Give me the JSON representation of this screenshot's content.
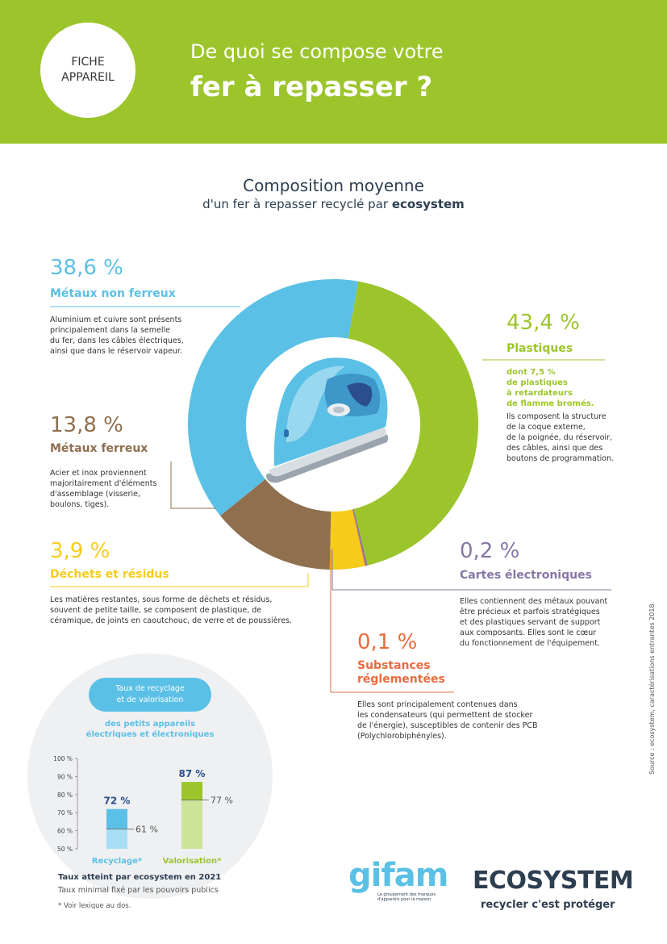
{
  "header": {
    "badge_line1": "FICHE",
    "badge_line2": "APPAREIL",
    "title_line1": "De quoi se compose votre",
    "title_line2": "fer à repasser ?"
  },
  "composition": {
    "title": "Composition moyenne",
    "subtitle_prefix": "d'un fer à repasser recyclé par ",
    "subtitle_brand": "ecosystem"
  },
  "chart_data": [
    {
      "type": "pie",
      "title": "Composition moyenne",
      "categories": [
        "Plastiques",
        "Cartes électroniques",
        "Substances réglementées",
        "Déchets et résidus",
        "Métaux ferreux",
        "Métaux non ferreux"
      ],
      "values": [
        43.4,
        0.2,
        0.1,
        3.9,
        13.8,
        38.6
      ],
      "colors": [
        "#9cc52c",
        "#8676a5",
        "#ea6b3f",
        "#f6cc1b",
        "#8f6f4e",
        "#5bc0e6"
      ]
    },
    {
      "type": "bar",
      "title": "Taux de recyclage et de valorisation",
      "categories": [
        "Recyclage*",
        "Valorisation*"
      ],
      "series": [
        {
          "name": "Taux atteint par ecosystem en 2021",
          "values": [
            72,
            87
          ]
        },
        {
          "name": "Taux minimal fixé par les pouvoirs publics",
          "values": [
            61,
            77
          ]
        }
      ],
      "ylim": [
        50,
        100
      ],
      "yticks": [
        "100 %",
        "90 %",
        "80 %",
        "70 %",
        "60 %",
        "50 %"
      ]
    }
  ],
  "segments": {
    "non_ferreux": {
      "pct": "38,6 %",
      "label": "Métaux non ferreux",
      "desc": [
        "Aluminium et cuivre sont présents",
        "principalement dans la semelle",
        "du fer, dans les câbles électriques,",
        "ainsi que dans le réservoir vapeur."
      ]
    },
    "plastiques": {
      "pct": "43,4 %",
      "label": "Plastiques",
      "bold": [
        "dont 7,5 %",
        "de plastiques",
        "à retardateurs",
        "de flamme bromés."
      ],
      "desc": [
        "Ils composent la structure",
        "de la coque externe,",
        "de la poignée, du réservoir,",
        "des câbles, ainsi que des",
        "boutons de programmation."
      ]
    },
    "ferreux": {
      "pct": "13,8 %",
      "label": "Métaux ferreux",
      "desc": [
        "Acier et inox proviennent",
        "majoritairement d'éléments",
        "d'assemblage (visserie,",
        "boulons, tiges)."
      ]
    },
    "dechets": {
      "pct": "3,9 %",
      "label": "Déchets et résidus",
      "desc": [
        "Les matières restantes, sous forme de déchets et résidus,",
        "souvent de petite taille, se composent de plastique, de",
        "céramique, de joints en caoutchouc, de verre et de poussières."
      ]
    },
    "cartes": {
      "pct": "0,2 %",
      "label": "Cartes électroniques",
      "desc": [
        "Elles contiennent des métaux pouvant",
        "être précieux et parfois stratégiques",
        "et des plastiques servant de support",
        "aux composants. Elles sont le cœur",
        "du fonctionnement de l'équipement."
      ]
    },
    "substances": {
      "pct": "0,1 %",
      "label1": "Substances",
      "label2": "réglementées",
      "desc": [
        "Elles sont principalement contenues dans",
        "les condensateurs (qui permettent de stocker",
        "de l'énergie), susceptibles de contenir des PCB",
        "(Polychlorobiphényles)."
      ]
    }
  },
  "recycling": {
    "pill": [
      "Taux de recyclage",
      "et de valorisation"
    ],
    "sub": [
      "des petits appareils",
      "électriques et électroniques"
    ],
    "yticks": [
      "100 %",
      "90 %",
      "80 %",
      "70 %",
      "60 %",
      "50 %"
    ],
    "bars": [
      {
        "label": "Recyclage*",
        "value_label": "72 %",
        "min_label": "61 %"
      },
      {
        "label": "Valorisation*",
        "value_label": "87 %",
        "min_label": "77 %"
      }
    ],
    "legend_attained": "Taux atteint par ecosystem en 2021",
    "legend_min": "Taux minimal fixé par les pouvoirs publics",
    "footnote": "* Voir lexique au dos."
  },
  "logos": {
    "gifam": "gifam",
    "gifam_tag": "Le groupement des marques d'appareils pour la maison",
    "ecosystem": "ECOSYSTEM",
    "ecosystem_slogan": "recycler c'est protéger"
  },
  "source": "Source : ecosystem, caractérisations entrantes 2018."
}
